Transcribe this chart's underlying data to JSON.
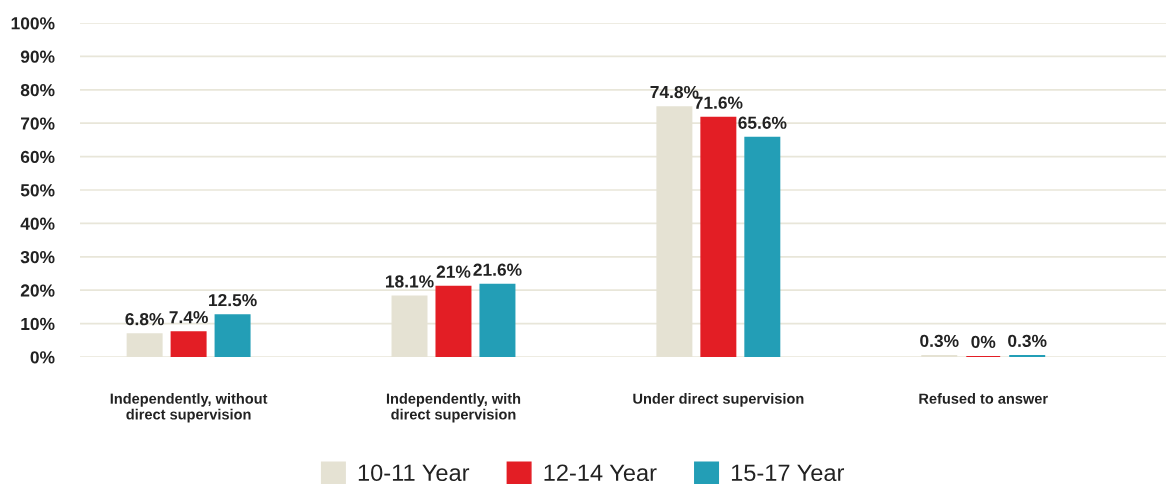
{
  "chart_data": {
    "type": "bar",
    "categories": [
      "Independently, without\ndirect supervision",
      "Independently, with\ndirect supervision",
      "Under direct supervision",
      "Refused to answer"
    ],
    "series": [
      {
        "name": "10-11 Year",
        "color": "#e5e2d3",
        "values": [
          6.8,
          18.1,
          74.8,
          0.3
        ],
        "value_labels": [
          "6.8%",
          "18.1%",
          "74.8%",
          "0.3%"
        ]
      },
      {
        "name": "12-14 Year",
        "color": "#e31e25",
        "values": [
          7.4,
          21,
          71.6,
          0
        ],
        "value_labels": [
          "7.4%",
          "21%",
          "71.6%",
          "0%"
        ]
      },
      {
        "name": "15-17 Year",
        "color": "#239eb6",
        "values": [
          12.5,
          21.6,
          65.6,
          0.3
        ],
        "value_labels": [
          "12.5%",
          "21.6%",
          "65.6%",
          "0.3%"
        ]
      }
    ],
    "ylim": [
      0,
      100
    ],
    "yticks": [
      {
        "value": 0,
        "label": "0%"
      },
      {
        "value": 10,
        "label": "10%"
      },
      {
        "value": 20,
        "label": "20%"
      },
      {
        "value": 30,
        "label": "30%"
      },
      {
        "value": 40,
        "label": "40%"
      },
      {
        "value": 50,
        "label": "50%"
      },
      {
        "value": 60,
        "label": "60%"
      },
      {
        "value": 70,
        "label": "70%"
      },
      {
        "value": 80,
        "label": "80%"
      },
      {
        "value": 90,
        "label": "90%"
      },
      {
        "value": 100,
        "label": "100%"
      }
    ],
    "grid": "y",
    "legend": "bottom"
  }
}
